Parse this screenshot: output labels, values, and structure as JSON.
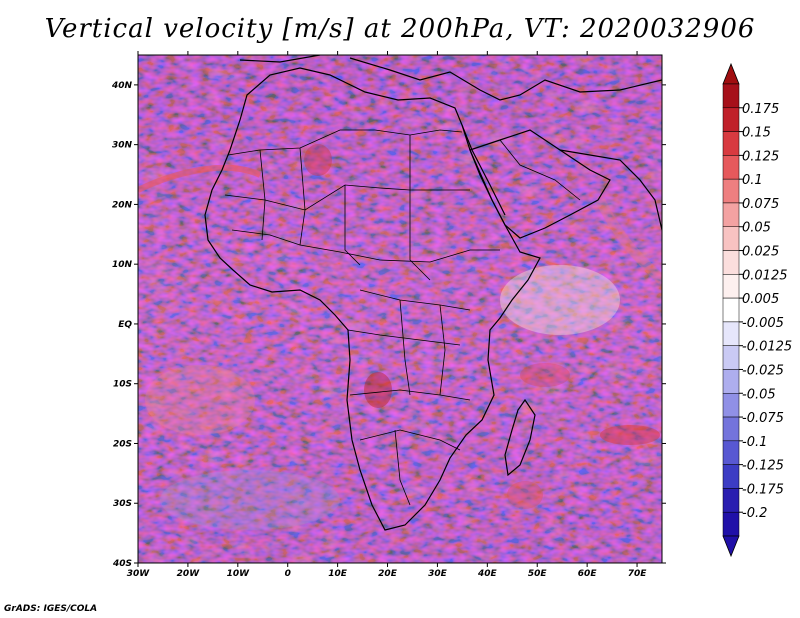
{
  "title": "Vertical velocity [m/s] at 200hPa, VT: 2020032906",
  "credit": "GrADS: IGES/COLA",
  "map": {
    "lon_range": [
      -30,
      75
    ],
    "lat_range": [
      -40,
      45
    ],
    "lat_ticks": [
      {
        "value": 40,
        "label": "40N"
      },
      {
        "value": 30,
        "label": "30N"
      },
      {
        "value": 20,
        "label": "20N"
      },
      {
        "value": 10,
        "label": "10N"
      },
      {
        "value": 0,
        "label": "EQ"
      },
      {
        "value": -10,
        "label": "10S"
      },
      {
        "value": -20,
        "label": "20S"
      },
      {
        "value": -30,
        "label": "30S"
      },
      {
        "value": -40,
        "label": "40S"
      }
    ],
    "lon_ticks": [
      {
        "value": -30,
        "label": "30W"
      },
      {
        "value": -20,
        "label": "20W"
      },
      {
        "value": -10,
        "label": "10W"
      },
      {
        "value": 0,
        "label": "0"
      },
      {
        "value": 10,
        "label": "10E"
      },
      {
        "value": 20,
        "label": "20E"
      },
      {
        "value": 30,
        "label": "30E"
      },
      {
        "value": 40,
        "label": "40E"
      },
      {
        "value": 50,
        "label": "50E"
      },
      {
        "value": 60,
        "label": "60E"
      },
      {
        "value": 70,
        "label": "70E"
      }
    ]
  },
  "colorbar": {
    "levels": [
      {
        "label": "0.175",
        "color": "#a6101a"
      },
      {
        "label": "0.15",
        "color": "#c0202a"
      },
      {
        "label": "0.125",
        "color": "#d83a40"
      },
      {
        "label": "0.1",
        "color": "#e6595c"
      },
      {
        "label": "0.075",
        "color": "#ee7f80"
      },
      {
        "label": "0.05",
        "color": "#f3a2a2"
      },
      {
        "label": "0.025",
        "color": "#f8c3c2"
      },
      {
        "label": "0.0125",
        "color": "#fbdedd"
      },
      {
        "label": "0.005",
        "color": "#fdf0ef"
      },
      {
        "label": "-0.005",
        "color": "#ffffff"
      },
      {
        "label": "-0.0125",
        "color": "#e6e6fb"
      },
      {
        "label": "-0.025",
        "color": "#cacaf4"
      },
      {
        "label": "-0.05",
        "color": "#aeaeee"
      },
      {
        "label": "-0.075",
        "color": "#9090e6"
      },
      {
        "label": "-0.1",
        "color": "#7474dc"
      },
      {
        "label": "-0.125",
        "color": "#5858d2"
      },
      {
        "label": "-0.175",
        "color": "#3c3cc4"
      },
      {
        "label": "-0.2",
        "color": "#2a1eb0"
      }
    ],
    "top_color": "#a00e10",
    "bottom_color": "#2010a8"
  }
}
